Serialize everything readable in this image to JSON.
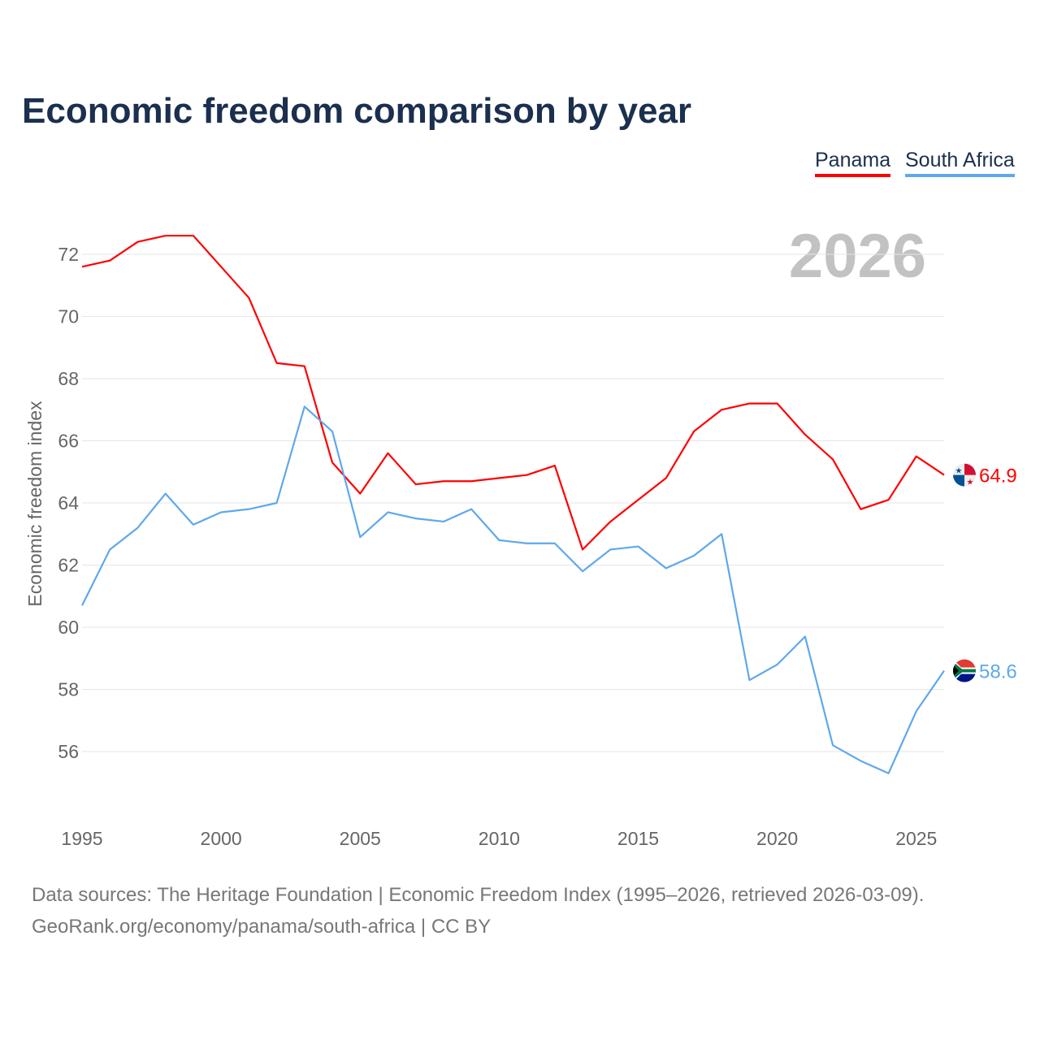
{
  "title": "Economic freedom comparison by year",
  "year_watermark": "2026",
  "source_line1": "Data sources: The Heritage Foundation | Economic Freedom Index (1995–2026, retrieved 2026-03-09).",
  "source_line2": "GeoRank.org/economy/panama/south-africa | CC BY",
  "chart_data": {
    "type": "line",
    "title": "Economic freedom comparison by year",
    "xlabel": "",
    "ylabel": "Economic freedom index",
    "x": [
      1995,
      1996,
      1997,
      1998,
      1999,
      2000,
      2001,
      2002,
      2003,
      2004,
      2005,
      2006,
      2007,
      2008,
      2009,
      2010,
      2011,
      2012,
      2013,
      2014,
      2015,
      2016,
      2017,
      2018,
      2019,
      2020,
      2021,
      2022,
      2023,
      2024,
      2025,
      2026
    ],
    "xticks": [
      "1995",
      "2000",
      "2005",
      "2010",
      "2015",
      "2020",
      "2025"
    ],
    "yticks": [
      "56",
      "58",
      "60",
      "62",
      "64",
      "66",
      "68",
      "70",
      "72"
    ],
    "xlim": [
      1995,
      2026
    ],
    "ylim": [
      54,
      73.9
    ],
    "grid": true,
    "legend": "top-right",
    "series": [
      {
        "name": "Panama",
        "color": "#ff0000",
        "end_label": "64.9",
        "flag": "panama-flag",
        "values": [
          71.6,
          71.8,
          72.4,
          72.6,
          72.6,
          71.6,
          70.6,
          68.5,
          68.4,
          65.3,
          64.3,
          65.6,
          64.6,
          64.7,
          64.7,
          64.8,
          64.9,
          65.2,
          62.5,
          63.4,
          64.1,
          64.8,
          66.3,
          67.0,
          67.2,
          67.2,
          66.2,
          65.4,
          63.8,
          64.1,
          65.5,
          64.9
        ]
      },
      {
        "name": "South Africa",
        "color": "#5fa8ec",
        "end_label": "58.6",
        "flag": "south-africa-flag",
        "values": [
          60.7,
          62.5,
          63.2,
          64.3,
          63.3,
          63.7,
          63.8,
          64.0,
          67.1,
          66.3,
          62.9,
          63.7,
          63.5,
          63.4,
          63.8,
          62.8,
          62.7,
          62.7,
          61.8,
          62.5,
          62.6,
          61.9,
          62.3,
          63.0,
          58.3,
          58.8,
          59.7,
          56.2,
          55.7,
          55.3,
          57.3,
          58.6
        ]
      }
    ]
  }
}
